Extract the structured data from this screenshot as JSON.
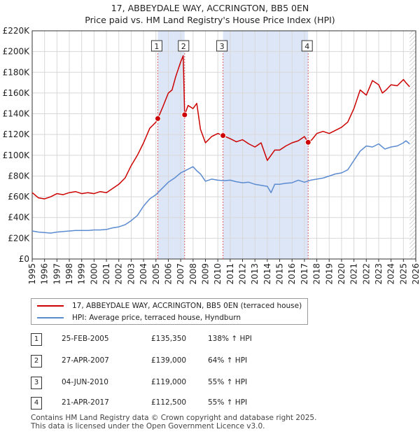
{
  "title_line1": "17, ABBEYDALE WAY, ACCRINGTON, BB5 0EN",
  "title_line2": "Price paid vs. HM Land Registry's House Price Index (HPI)",
  "colors": {
    "property": "#cc0000",
    "hpi": "#5b8bd0",
    "shade": "#dde6f7",
    "vline": "#e06060",
    "grid": "#d8d8d8"
  },
  "chart_data": {
    "type": "line",
    "xlim": [
      1995,
      2026
    ],
    "ylim": [
      0,
      220000
    ],
    "y_ticks": [
      0,
      20000,
      40000,
      60000,
      80000,
      100000,
      120000,
      140000,
      160000,
      180000,
      200000,
      220000
    ],
    "y_tick_labels": [
      "£0",
      "£20K",
      "£40K",
      "£60K",
      "£80K",
      "£100K",
      "£120K",
      "£140K",
      "£160K",
      "£180K",
      "£200K",
      "£220K"
    ],
    "x_ticks": [
      1995,
      1996,
      1997,
      1998,
      1999,
      2000,
      2001,
      2002,
      2003,
      2004,
      2005,
      2006,
      2007,
      2008,
      2009,
      2010,
      2011,
      2012,
      2013,
      2014,
      2015,
      2016,
      2017,
      2018,
      2019,
      2020,
      2021,
      2022,
      2023,
      2024,
      2025,
      2026
    ],
    "x_tick_labels": [
      "1995",
      "1996",
      "1997",
      "1998",
      "1999",
      "2000",
      "2001",
      "2002",
      "2003",
      "2004",
      "2005",
      "2006",
      "2007",
      "2008",
      "2009",
      "2010",
      "2011",
      "2012",
      "2013",
      "2014",
      "2015",
      "2016",
      "2017",
      "2018",
      "2019",
      "2020",
      "2021",
      "2022",
      "2023",
      "2024",
      "2025",
      "2026"
    ],
    "grid": true,
    "shaded_ranges": [
      [
        2005.15,
        2007.32
      ],
      [
        2010.42,
        2017.3
      ]
    ],
    "hatched_from": 2025.5,
    "sales": [
      {
        "label": "1",
        "x": 2005.15,
        "y": 135350
      },
      {
        "label": "2",
        "x": 2007.32,
        "y": 139000
      },
      {
        "label": "3",
        "x": 2010.42,
        "y": 119000
      },
      {
        "label": "4",
        "x": 2017.3,
        "y": 112500
      }
    ],
    "series": [
      {
        "name": "17, ABBEYDALE WAY, ACCRINGTON, BB5 0EN (terraced house)",
        "color": "#cc0000",
        "x": [
          1995,
          1995.5,
          1996,
          1996.5,
          1997,
          1997.5,
          1998,
          1998.5,
          1999,
          1999.5,
          2000,
          2000.5,
          2001,
          2001.5,
          2002,
          2002.5,
          2003,
          2003.5,
          2004,
          2004.5,
          2005.0,
          2005.15,
          2005.5,
          2006,
          2006.3,
          2006.6,
          2007.0,
          2007.2,
          2007.32,
          2007.6,
          2008,
          2008.3,
          2008.6,
          2009,
          2009.5,
          2010,
          2010.42,
          2010.8,
          2011,
          2011.5,
          2012,
          2012.5,
          2013,
          2013.5,
          2014,
          2014.3,
          2014.6,
          2015,
          2015.5,
          2016,
          2016.5,
          2017,
          2017.3,
          2017.6,
          2018,
          2018.5,
          2019,
          2019.5,
          2020,
          2020.5,
          2021,
          2021.5,
          2022,
          2022.5,
          2023,
          2023.3,
          2023.6,
          2024,
          2024.5,
          2025,
          2025.2,
          2025.5
        ],
        "y": [
          64000,
          59000,
          58000,
          60000,
          63000,
          62000,
          64000,
          65000,
          63000,
          64000,
          63000,
          65000,
          64000,
          68000,
          72000,
          78000,
          90000,
          100000,
          112000,
          126000,
          132000,
          135350,
          145000,
          160000,
          163000,
          176000,
          190000,
          196000,
          139000,
          148000,
          145000,
          150000,
          125000,
          112000,
          118000,
          121000,
          119000,
          117000,
          116000,
          113000,
          115000,
          111000,
          108000,
          112000,
          95000,
          100000,
          105000,
          105000,
          109000,
          112000,
          114000,
          118000,
          112500,
          115000,
          121000,
          123000,
          121000,
          124000,
          127000,
          132000,
          145000,
          163000,
          158000,
          172000,
          168000,
          160000,
          163000,
          168000,
          167000,
          173000,
          170000,
          166000
        ]
      },
      {
        "name": "HPI: Average price, terraced house, Hyndburn",
        "color": "#5b8bd0",
        "x": [
          1995,
          1995.5,
          1996,
          1996.5,
          1997,
          1997.5,
          1998,
          1998.5,
          1999,
          1999.5,
          2000,
          2000.5,
          2001,
          2001.5,
          2002,
          2002.5,
          2003,
          2003.5,
          2004,
          2004.5,
          2005,
          2005.5,
          2006,
          2006.5,
          2007,
          2007.5,
          2008,
          2008.3,
          2008.6,
          2009,
          2009.5,
          2010,
          2010.5,
          2011,
          2011.5,
          2012,
          2012.5,
          2013,
          2013.5,
          2014,
          2014.3,
          2014.6,
          2015,
          2015.5,
          2016,
          2016.5,
          2017,
          2017.5,
          2018,
          2018.5,
          2019,
          2019.5,
          2020,
          2020.5,
          2021,
          2021.5,
          2022,
          2022.5,
          2023,
          2023.5,
          2024,
          2024.5,
          2025,
          2025.2,
          2025.5
        ],
        "y": [
          27000,
          26000,
          25500,
          25000,
          26000,
          26500,
          27000,
          27500,
          27500,
          27500,
          28000,
          28000,
          28500,
          30000,
          31000,
          33000,
          37000,
          42000,
          51000,
          58000,
          62000,
          68000,
          74000,
          78000,
          83000,
          86000,
          89000,
          85000,
          82000,
          75000,
          77000,
          76000,
          75500,
          76000,
          74500,
          73500,
          74000,
          72000,
          71000,
          70000,
          64000,
          72000,
          72000,
          73000,
          73500,
          76000,
          74000,
          76000,
          77000,
          78000,
          80000,
          82000,
          83000,
          86000,
          95000,
          104000,
          109000,
          108000,
          111000,
          106000,
          108000,
          109000,
          112000,
          114000,
          111000
        ]
      }
    ]
  },
  "transactions": [
    {
      "num": "1",
      "date": "25-FEB-2005",
      "price": "£135,350",
      "hpi": "138% ↑ HPI"
    },
    {
      "num": "2",
      "date": "27-APR-2007",
      "price": "£139,000",
      "hpi": "64% ↑ HPI"
    },
    {
      "num": "3",
      "date": "04-JUN-2010",
      "price": "£119,000",
      "hpi": "55% ↑ HPI"
    },
    {
      "num": "4",
      "date": "21-APR-2017",
      "price": "£112,500",
      "hpi": "55% ↑ HPI"
    }
  ],
  "footer_line1": "Contains HM Land Registry data © Crown copyright and database right 2025.",
  "footer_line2": "This data is licensed under the Open Government Licence v3.0."
}
